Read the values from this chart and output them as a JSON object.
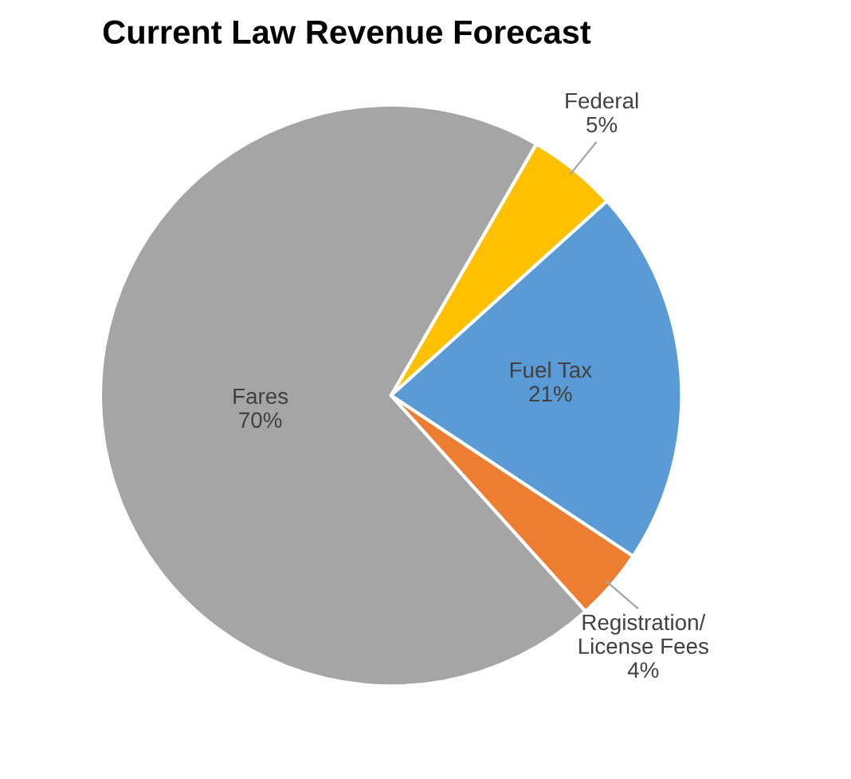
{
  "chart_data": {
    "type": "pie",
    "title": "Current Law Revenue Forecast",
    "categories": [
      "Federal",
      "Fuel Tax",
      "Registration/\nLicense Fees",
      "Fares"
    ],
    "values": [
      5,
      21,
      4,
      70
    ],
    "value_labels": [
      "5%",
      "21%",
      "4%",
      "70%"
    ],
    "colors": [
      "#ffc000",
      "#5b9bd5",
      "#ed7d31",
      "#a5a5a5"
    ]
  }
}
